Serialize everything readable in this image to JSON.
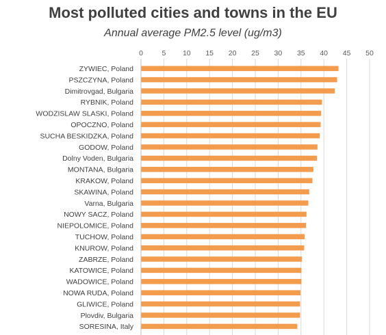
{
  "chart_data": {
    "type": "bar",
    "orientation": "horizontal",
    "title": "Most polluted cities and towns in the EU",
    "subtitle": "Annual average PM2.5 level (ug/m3)",
    "xlim": [
      0,
      50
    ],
    "ticks": [
      "0",
      "5",
      "10",
      "15",
      "20",
      "25",
      "30",
      "35",
      "40",
      "45",
      "50"
    ],
    "grid": true,
    "bar_color": "#f39c4d",
    "categories": [
      "ZYWIEC, Poland",
      "PSZCZYNA, Poland",
      "Dimitrovgad, Bulgaria",
      "RYBNIK, Poland",
      "WODZISLAW SLASKI, Poland",
      "OPOCZNO, Poland",
      "SUCHA BESKIDZKA, Poland",
      "GODOW, Poland",
      "Dolny Voden, Bulgaria",
      "MONTANA, Bulgaria",
      "KRAKOW, Poland",
      "SKAWINA, Poland",
      "Varna, Bulgaria",
      "NOWY SACZ, Poland",
      "NIEPOLOMICE, Poland",
      "TUCHOW, Poland",
      "KNUROW, Poland",
      "ZABRZE, Poland",
      "KATOWICE, Poland",
      "WADOWICE, Poland",
      "NOWA RUDA, Poland",
      "GLIWICE, Poland",
      "Plovdiv, Bulgaria",
      "SORESINA, Italy"
    ],
    "values": [
      43.2,
      42.9,
      42.4,
      39.6,
      39.4,
      39.3,
      39.1,
      38.6,
      38.5,
      37.7,
      37.5,
      36.8,
      36.6,
      36.2,
      36.1,
      35.8,
      35.7,
      35.2,
      35.1,
      35.1,
      34.9,
      34.8,
      34.8,
      34.2
    ]
  }
}
